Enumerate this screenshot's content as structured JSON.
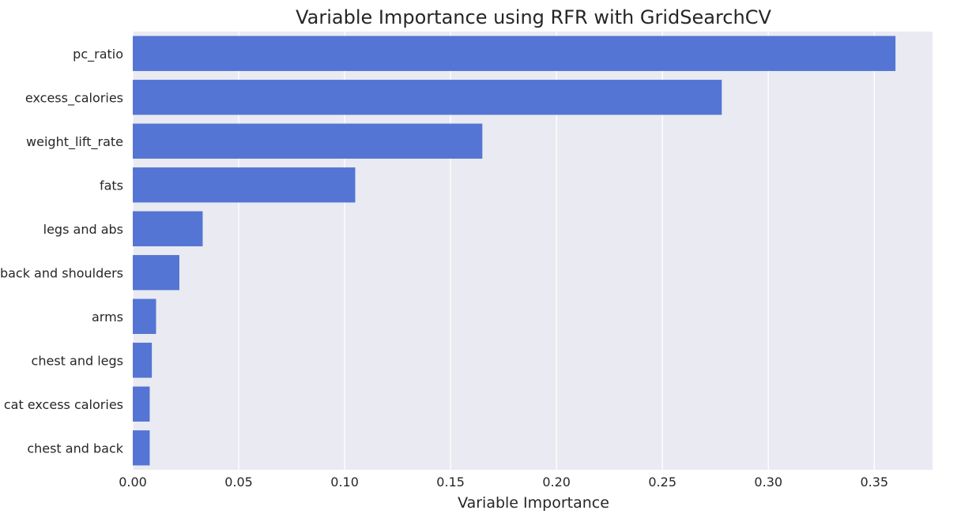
{
  "chart_data": {
    "type": "bar",
    "orientation": "horizontal",
    "title": "Variable Importance using RFR with GridSearchCV",
    "xlabel": "Variable Importance",
    "ylabel": "",
    "categories": [
      "pc_ratio",
      "excess_calories",
      "weight_lift_rate",
      "fats",
      "legs and abs",
      "back and shoulders",
      "arms",
      "chest and legs",
      "cat excess calories",
      "chest and back"
    ],
    "values": [
      0.36,
      0.278,
      0.165,
      0.105,
      0.033,
      0.022,
      0.011,
      0.009,
      0.008,
      0.008
    ],
    "xlim": [
      0,
      0.3775
    ],
    "xticks": [
      0.0,
      0.05,
      0.1,
      0.15,
      0.2,
      0.25,
      0.3,
      0.35
    ],
    "xtick_labels": [
      "0.00",
      "0.05",
      "0.10",
      "0.15",
      "0.20",
      "0.25",
      "0.30",
      "0.35"
    ],
    "grid": true,
    "legend": "none",
    "colors": {
      "bar": "#5475d3",
      "plot_background": "#eaeaf2",
      "grid": "#ffffff",
      "text": "#262626"
    }
  }
}
